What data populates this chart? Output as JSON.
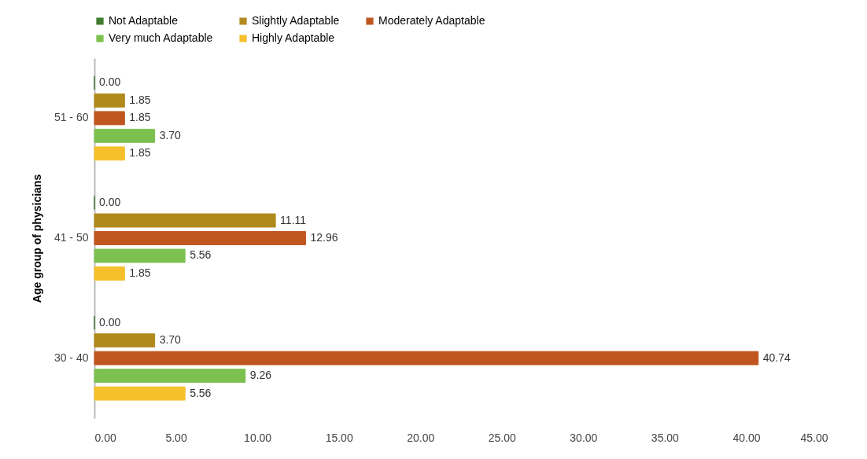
{
  "chart_data": {
    "type": "bar",
    "orientation": "horizontal",
    "ylabel": "Age group of physicians",
    "categories": [
      "51 -  60",
      "41 - 50",
      "30 - 40"
    ],
    "series": [
      {
        "name": "Not Adaptable",
        "color": "#3f7a2e",
        "values": [
          0,
          0,
          0
        ],
        "value_labels": [
          "0.00",
          "0.00",
          "0.00"
        ]
      },
      {
        "name": "Slightly Adaptable",
        "color": "#b08a1c",
        "values": [
          1.85,
          11.11,
          3.7
        ],
        "value_labels": [
          "1.85",
          "11.11",
          "3.70"
        ]
      },
      {
        "name": "Moderately Adaptable",
        "color": "#c0561f",
        "values": [
          1.85,
          12.96,
          40.74
        ],
        "value_labels": [
          "1.85",
          "12.96",
          "40.74"
        ]
      },
      {
        "name": "Very much Adaptable",
        "color": "#7cc150",
        "values": [
          3.7,
          5.56,
          9.26
        ],
        "value_labels": [
          "3.70",
          "5.56",
          "9.26"
        ]
      },
      {
        "name": "Highly Adaptable",
        "color": "#f5c02a",
        "values": [
          1.85,
          1.85,
          5.56
        ],
        "value_labels": [
          "1.85",
          "1.85",
          "5.56"
        ]
      }
    ],
    "xlim": [
      0,
      45
    ],
    "xticks": [
      {
        "value": 0,
        "label": "0.00"
      },
      {
        "value": 5,
        "label": "5.00"
      },
      {
        "value": 10,
        "label": "10.00"
      },
      {
        "value": 15,
        "label": "15.00"
      },
      {
        "value": 20,
        "label": "20.00"
      },
      {
        "value": 25,
        "label": "25.00"
      },
      {
        "value": 30,
        "label": "30.00"
      },
      {
        "value": 35,
        "label": "35.00"
      },
      {
        "value": 40,
        "label": "40.00"
      },
      {
        "value": 45,
        "label": "45.00"
      }
    ],
    "grid": false,
    "legend": "top"
  }
}
